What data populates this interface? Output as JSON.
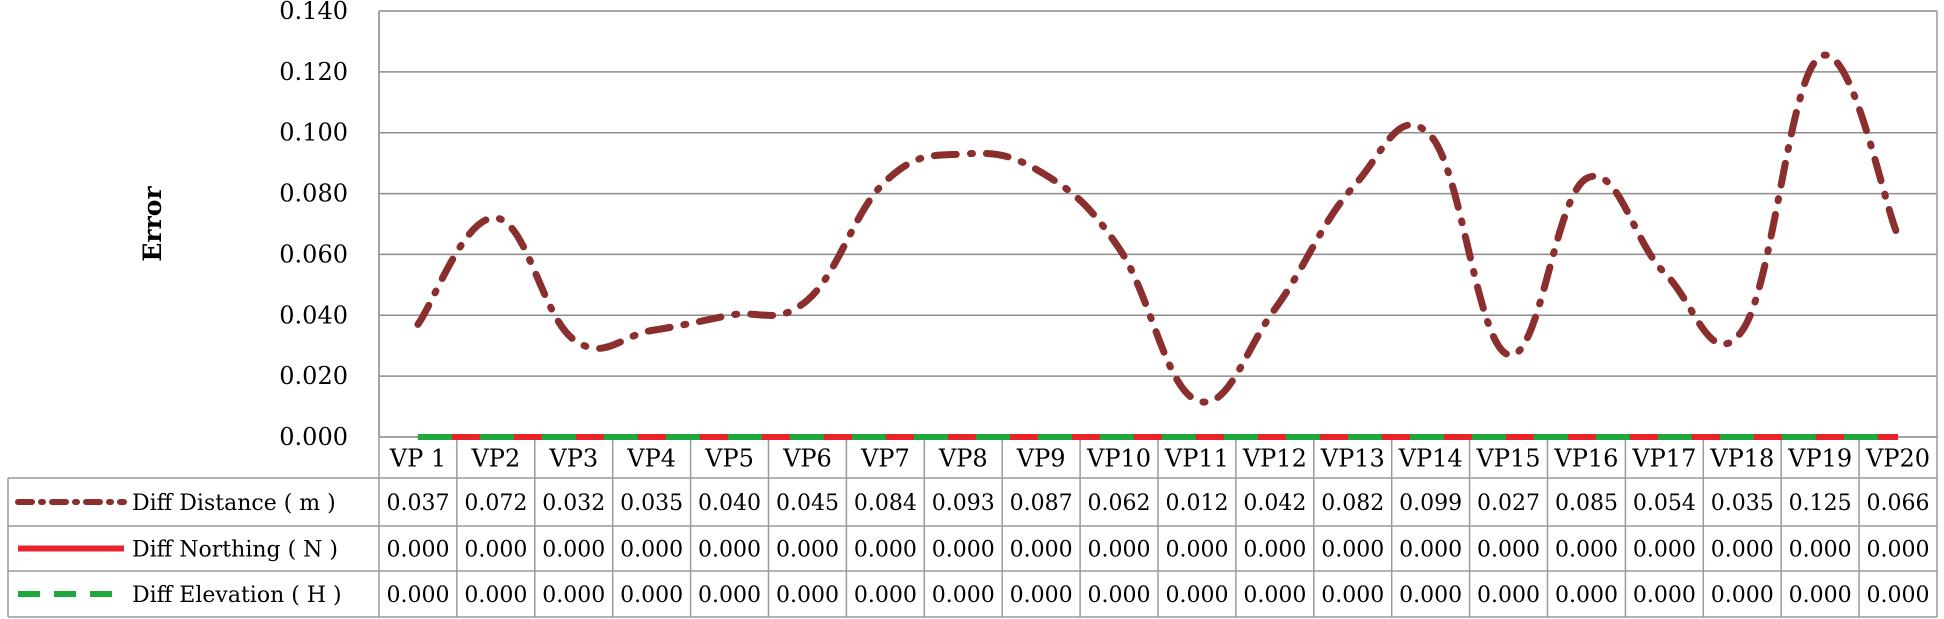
{
  "chart_data": {
    "type": "line",
    "ylabel": "Error",
    "ylim": [
      0,
      0.14
    ],
    "y_ticks": [
      "0.000",
      "0.020",
      "0.040",
      "0.060",
      "0.080",
      "0.100",
      "0.120",
      "0.140"
    ],
    "categories": [
      "VP 1",
      "VP2",
      "VP3",
      "VP4",
      "VP5",
      "VP6",
      "VP7",
      "VP8",
      "VP9",
      "VP10",
      "VP11",
      "VP12",
      "VP13",
      "VP14",
      "VP15",
      "VP16",
      "VP17",
      "VP18",
      "VP19",
      "VP20"
    ],
    "grid": true,
    "legend": "data-table-left",
    "series": [
      {
        "name": "Diff Distance ( m )",
        "color": "#8b2e2e",
        "style": "dash-dot",
        "smooth": true,
        "values": [
          0.037,
          0.072,
          0.032,
          0.035,
          0.04,
          0.045,
          0.084,
          0.093,
          0.087,
          0.062,
          0.012,
          0.042,
          0.082,
          0.099,
          0.027,
          0.085,
          0.054,
          0.035,
          0.125,
          0.066
        ],
        "labels": [
          "0.037",
          "0.072",
          "0.032",
          "0.035",
          "0.040",
          "0.045",
          "0.084",
          "0.093",
          "0.087",
          "0.062",
          "0.012",
          "0.042",
          "0.082",
          "0.099",
          "0.027",
          "0.085",
          "0.054",
          "0.035",
          "0.125",
          "0.066"
        ]
      },
      {
        "name": "Diff Northing ( N )",
        "color": "#e8242a",
        "style": "solid",
        "values": [
          0,
          0,
          0,
          0,
          0,
          0,
          0,
          0,
          0,
          0,
          0,
          0,
          0,
          0,
          0,
          0,
          0,
          0,
          0,
          0
        ],
        "labels": [
          "0.000",
          "0.000",
          "0.000",
          "0.000",
          "0.000",
          "0.000",
          "0.000",
          "0.000",
          "0.000",
          "0.000",
          "0.000",
          "0.000",
          "0.000",
          "0.000",
          "0.000",
          "0.000",
          "0.000",
          "0.000",
          "0.000",
          "0.000"
        ]
      },
      {
        "name": "Diff Elevation ( H )",
        "color": "#1fa83c",
        "style": "dashed",
        "values": [
          0,
          0,
          0,
          0,
          0,
          0,
          0,
          0,
          0,
          0,
          0,
          0,
          0,
          0,
          0,
          0,
          0,
          0,
          0,
          0
        ],
        "labels": [
          "0.000",
          "0.000",
          "0.000",
          "0.000",
          "0.000",
          "0.000",
          "0.000",
          "0.000",
          "0.000",
          "0.000",
          "0.000",
          "0.000",
          "0.000",
          "0.000",
          "0.000",
          "0.000",
          "0.000",
          "0.000",
          "0.000",
          "0.000"
        ]
      }
    ]
  }
}
